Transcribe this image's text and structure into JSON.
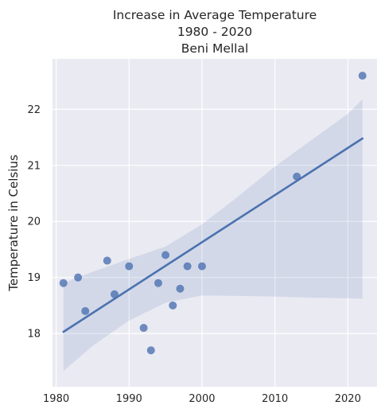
{
  "chart_data": {
    "type": "scatter",
    "title_lines": [
      "Increase in Average Temperature",
      "1980 - 2020",
      "Beni Mellal"
    ],
    "xlabel": "",
    "ylabel": "Temperature in Celsius",
    "xlim": [
      1979.5,
      2024
    ],
    "ylim": [
      17.05,
      22.9
    ],
    "x_ticks": [
      1980,
      1990,
      2000,
      2010,
      2020
    ],
    "y_ticks": [
      18,
      19,
      20,
      21,
      22
    ],
    "grid": true,
    "points": [
      {
        "x": 1981,
        "y": 18.9
      },
      {
        "x": 1983,
        "y": 19.0
      },
      {
        "x": 1984,
        "y": 18.4
      },
      {
        "x": 1987,
        "y": 19.3
      },
      {
        "x": 1988,
        "y": 18.7
      },
      {
        "x": 1990,
        "y": 19.2
      },
      {
        "x": 1992,
        "y": 18.1
      },
      {
        "x": 1993,
        "y": 17.7
      },
      {
        "x": 1994,
        "y": 18.9
      },
      {
        "x": 1995,
        "y": 19.4
      },
      {
        "x": 1996,
        "y": 18.5
      },
      {
        "x": 1997,
        "y": 18.8
      },
      {
        "x": 1998,
        "y": 19.2
      },
      {
        "x": 2000,
        "y": 19.2
      },
      {
        "x": 2013,
        "y": 20.8
      },
      {
        "x": 2022,
        "y": 22.6
      }
    ],
    "regression_line": {
      "x": [
        1981,
        2022
      ],
      "y": [
        18.03,
        21.48
      ]
    },
    "confidence_band": {
      "x": [
        1981,
        1985,
        1990,
        1995,
        2000,
        2005,
        2010,
        2015,
        2020,
        2022
      ],
      "upper": [
        18.9,
        19.1,
        19.33,
        19.55,
        19.95,
        20.45,
        20.98,
        21.45,
        21.92,
        22.18
      ],
      "lower": [
        17.33,
        17.78,
        18.23,
        18.55,
        18.68,
        18.67,
        18.66,
        18.64,
        18.63,
        18.62
      ]
    },
    "colors": {
      "background": "#eaeaf2",
      "grid": "#ffffff",
      "point": "#4c72b0",
      "line": "#4c72b0",
      "band": "#4c72b0"
    }
  }
}
